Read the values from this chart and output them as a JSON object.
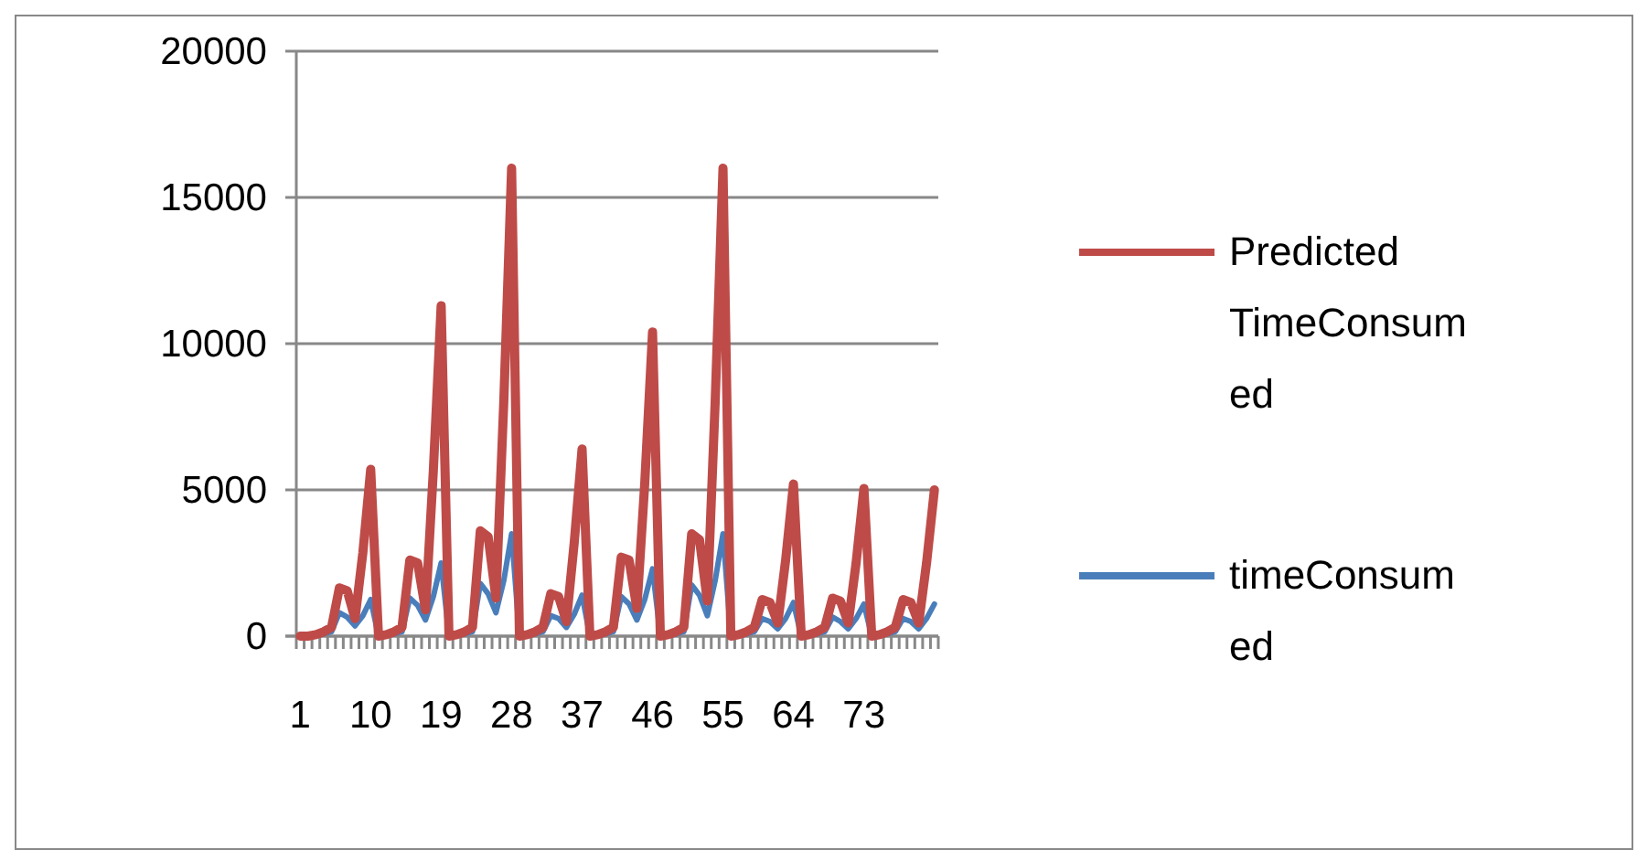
{
  "chart_data": {
    "type": "line",
    "categories": [
      "1",
      null,
      null,
      null,
      null,
      null,
      null,
      null,
      null,
      "10",
      null,
      null,
      null,
      null,
      null,
      null,
      null,
      null,
      "19",
      null,
      null,
      null,
      null,
      null,
      null,
      null,
      null,
      "28",
      null,
      null,
      null,
      null,
      null,
      null,
      null,
      null,
      "37",
      null,
      null,
      null,
      null,
      null,
      null,
      null,
      null,
      "46",
      null,
      null,
      null,
      null,
      null,
      null,
      null,
      null,
      "55",
      null,
      null,
      null,
      null,
      null,
      null,
      null,
      null,
      "64",
      null,
      null,
      null,
      null,
      null,
      null,
      null,
      null,
      "73",
      null,
      null,
      null,
      null,
      null,
      null,
      null,
      null,
      null
    ],
    "series": [
      {
        "name": "timeConsumed",
        "color": "#4a7ebb",
        "values": [
          null,
          null,
          30,
          80,
          150,
          800,
          650,
          350,
          700,
          1250,
          0,
          30,
          80,
          150,
          1300,
          1050,
          550,
          1350,
          2500,
          0,
          30,
          80,
          150,
          1800,
          1450,
          800,
          1900,
          3500,
          0,
          30,
          80,
          150,
          700,
          600,
          300,
          750,
          1400,
          0,
          30,
          80,
          150,
          1350,
          1100,
          550,
          1250,
          2300,
          0,
          30,
          80,
          150,
          1750,
          1400,
          700,
          1900,
          3500,
          0,
          30,
          80,
          150,
          600,
          500,
          250,
          600,
          1150,
          0,
          30,
          80,
          150,
          650,
          500,
          250,
          600,
          1100,
          0,
          30,
          80,
          150,
          600,
          500,
          250,
          600,
          1100
        ]
      },
      {
        "name": "Predicted TimeConsumed",
        "color": "#be4b48",
        "values": [
          0,
          0,
          50,
          150,
          300,
          1650,
          1550,
          600,
          2850,
          5700,
          0,
          50,
          150,
          300,
          2600,
          2500,
          900,
          5650,
          11300,
          0,
          50,
          150,
          300,
          3600,
          3400,
          1300,
          8000,
          16000,
          0,
          50,
          150,
          300,
          1450,
          1350,
          500,
          3200,
          6400,
          0,
          50,
          150,
          300,
          2700,
          2600,
          950,
          5200,
          10400,
          0,
          50,
          150,
          300,
          3500,
          3300,
          1200,
          8000,
          16000,
          0,
          50,
          150,
          300,
          1250,
          1150,
          450,
          2600,
          5200,
          0,
          50,
          150,
          300,
          1300,
          1200,
          450,
          2500,
          5050,
          0,
          50,
          150,
          300,
          1250,
          1150,
          450,
          2500,
          5000
        ]
      }
    ],
    "ylim": [
      0,
      20000
    ],
    "yticks": [
      0,
      5000,
      10000,
      15000,
      20000
    ],
    "grid": "y",
    "legend": "right",
    "marker": "none",
    "line_style": "solid"
  }
}
